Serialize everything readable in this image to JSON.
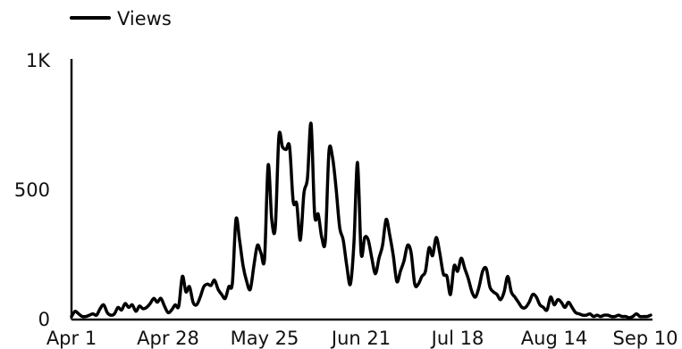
{
  "chart_data": {
    "type": "line",
    "legend": {
      "position": "top-left",
      "entries": [
        "Views"
      ]
    },
    "series": [
      {
        "name": "Views",
        "color": "#000000",
        "x": [
          0,
          1,
          2,
          3,
          4,
          5,
          6,
          7,
          8,
          9,
          10,
          11,
          12,
          13,
          14,
          15,
          16,
          17,
          18,
          19,
          20,
          21,
          22,
          23,
          24,
          25,
          26,
          27,
          28,
          29,
          30,
          31,
          32,
          33,
          34,
          35,
          36,
          37,
          38,
          39,
          40,
          41,
          42,
          43,
          44,
          45,
          46,
          47,
          48,
          49,
          50,
          51,
          52,
          53,
          54,
          55,
          56,
          57,
          58,
          59,
          60,
          61,
          62,
          63,
          64,
          65,
          66,
          67,
          68,
          69,
          70,
          71,
          72,
          73,
          74,
          75,
          76,
          77,
          78,
          79,
          80,
          81,
          82,
          83,
          84,
          85,
          86,
          87,
          88,
          89,
          90,
          91,
          92,
          93,
          94,
          95,
          96,
          97,
          98,
          99,
          100,
          101,
          102,
          103,
          104,
          105,
          106,
          107,
          108,
          109,
          110,
          111,
          112,
          113,
          114,
          115,
          116,
          117,
          118,
          119,
          120,
          121,
          122,
          123,
          124,
          125,
          126,
          127,
          128,
          129,
          130,
          131,
          132,
          133,
          134,
          135,
          136,
          137,
          138,
          139,
          140,
          141,
          142,
          143,
          144,
          145,
          146,
          147,
          148,
          149,
          150,
          151,
          152,
          153,
          154,
          155,
          156,
          157,
          158,
          159,
          160,
          161,
          162
        ],
        "values": [
          5,
          25,
          15,
          5,
          5,
          10,
          15,
          10,
          35,
          50,
          20,
          10,
          15,
          40,
          30,
          55,
          40,
          50,
          25,
          45,
          35,
          40,
          55,
          75,
          60,
          75,
          45,
          20,
          30,
          50,
          45,
          160,
          100,
          120,
          60,
          50,
          80,
          120,
          130,
          125,
          145,
          110,
          90,
          75,
          120,
          135,
          380,
          300,
          200,
          140,
          110,
          200,
          280,
          250,
          230,
          590,
          380,
          350,
          700,
          660,
          650,
          660,
          450,
          440,
          300,
          480,
          540,
          750,
          400,
          400,
          310,
          300,
          640,
          620,
          500,
          350,
          300,
          200,
          130,
          290,
          600,
          250,
          310,
          300,
          230,
          170,
          230,
          280,
          380,
          320,
          240,
          140,
          180,
          220,
          280,
          250,
          130,
          130,
          160,
          180,
          270,
          240,
          310,
          250,
          170,
          160,
          90,
          200,
          180,
          230,
          190,
          150,
          100,
          80,
          120,
          180,
          190,
          120,
          100,
          90,
          70,
          100,
          160,
          100,
          80,
          60,
          40,
          40,
          60,
          90,
          80,
          50,
          40,
          30,
          80,
          50,
          70,
          60,
          40,
          60,
          40,
          20,
          15,
          10,
          10,
          15,
          5,
          10,
          5,
          10,
          10,
          5,
          5,
          10,
          5,
          5,
          0,
          5,
          15,
          5,
          5,
          5,
          10
        ]
      }
    ],
    "x_tick_labels": [
      "Apr 1",
      "Apr 28",
      "May 25",
      "Jun 21",
      "Jul 18",
      "Aug 14",
      "Sep 10"
    ],
    "x_tick_positions": [
      0,
      27,
      54,
      81,
      108,
      135,
      162
    ],
    "y_tick_labels": [
      "0",
      "500",
      "1K"
    ],
    "y_tick_values": [
      0,
      500,
      1000
    ],
    "ylim": [
      0,
      1000
    ],
    "xlim": [
      0,
      162
    ],
    "grid": false
  }
}
